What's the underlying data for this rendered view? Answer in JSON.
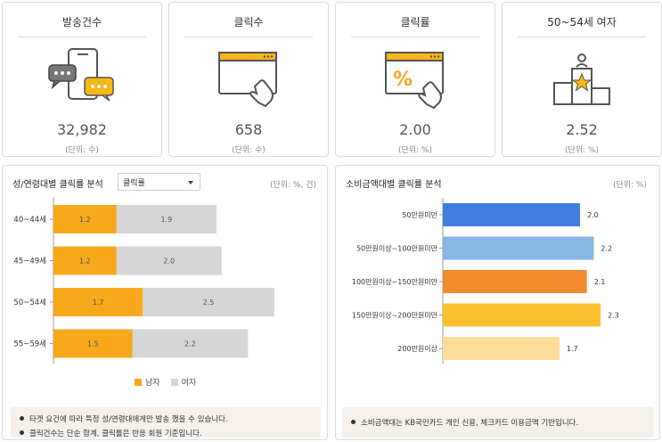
{
  "cards": [
    {
      "title": "발송건수",
      "value": "32,982",
      "unit": "(단위: 수)",
      "icon": "chat-phone-icon"
    },
    {
      "title": "클릭수",
      "value": "658",
      "unit": "(단위: 수)",
      "icon": "browser-click-icon"
    },
    {
      "title": "클릭률",
      "value": "2.00",
      "unit": "(단위: %)",
      "icon": "percent-click-icon"
    },
    {
      "title": "50~54세 여자",
      "value": "2.52",
      "unit": "(단위: %)",
      "icon": "podium-star-icon"
    }
  ],
  "left_panel": {
    "title": "성/연령대별 클릭률 분석",
    "dropdown_value": "클릭률",
    "unit": "(단위: %, 건)",
    "legend": [
      "남자",
      "여자"
    ],
    "notes": [
      "타겟 요건에 따라 특정 성/연령대에게만 발송 했을 수 있습니다.",
      "클릭건수는 단순 합계, 클릭률은 반응 회원 기준입니다."
    ]
  },
  "right_panel": {
    "title": "소비금액대별 클릭률 분석",
    "unit": "(단위: %)",
    "notes": [
      "소비금액대는 KB국민카드 개인 신용, 체크카드 이용금액 기반입니다."
    ]
  },
  "colors": {
    "male": "#f7a81b",
    "female": "#d6d6d6",
    "bars": [
      "#3f7fe0",
      "#86b7e3",
      "#f28a2e",
      "#fbc02d",
      "#fbdc99"
    ]
  },
  "chart_data": [
    {
      "type": "bar",
      "orientation": "horizontal",
      "stacked": true,
      "categories": [
        "40~44세",
        "45~49세",
        "50~54세",
        "55~59세"
      ],
      "series": [
        {
          "name": "남자",
          "values": [
            1.2,
            1.2,
            1.7,
            1.5
          ]
        },
        {
          "name": "여자",
          "values": [
            1.9,
            2.0,
            2.5,
            2.2
          ]
        }
      ],
      "labels": {
        "male": [
          "1.2",
          "1.2",
          "1.7",
          "1.5"
        ],
        "female": [
          "1.9",
          "2.0",
          "2.5",
          "2.2"
        ]
      },
      "legend_position": "bottom"
    },
    {
      "type": "bar",
      "orientation": "horizontal",
      "categories": [
        "50만원미만",
        "50만원이상~100만원미만",
        "100만원이상~150만원미만",
        "150만원이상~200만원미만",
        "200만원이상"
      ],
      "values": [
        2.0,
        2.2,
        2.1,
        2.3,
        1.7
      ],
      "labels": [
        "2.0",
        "2.2",
        "2.1",
        "2.3",
        "1.7"
      ]
    }
  ]
}
